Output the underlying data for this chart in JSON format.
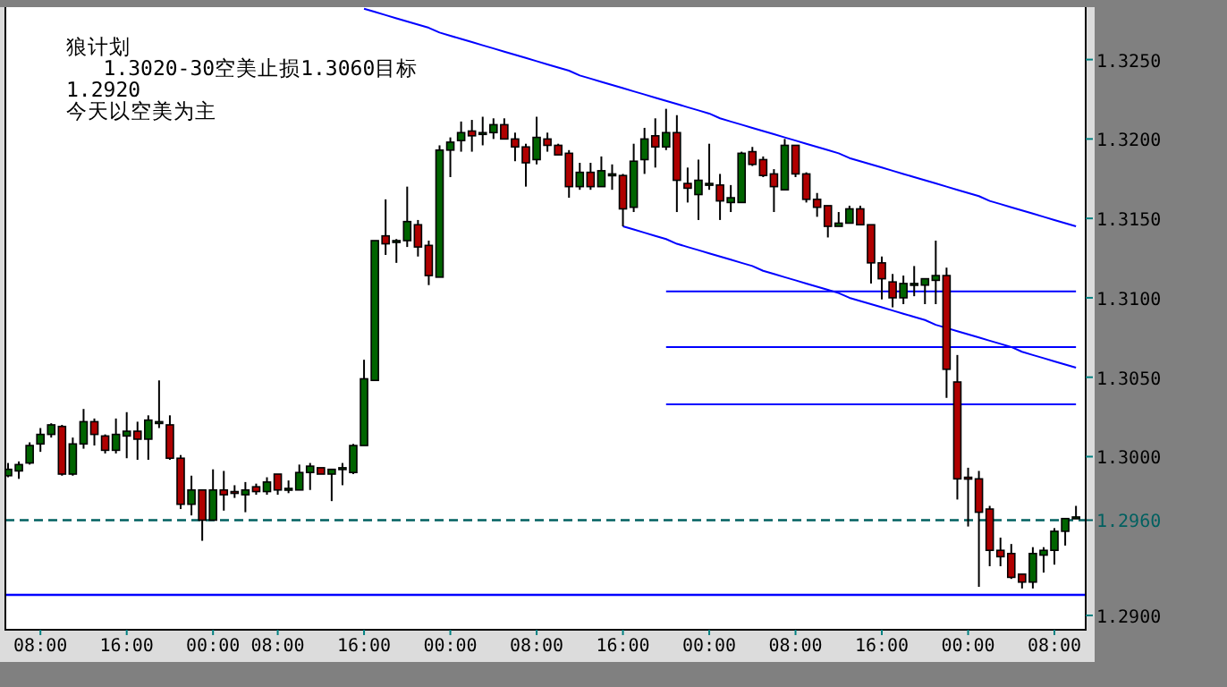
{
  "chart_data": {
    "type": "candlestick",
    "annotations": [
      "狼计划",
      "   1.3020-30空美止损1.3060目标",
      "1.2920",
      "今天以空美为主"
    ],
    "categories": [
      null,
      null,
      null,
      "08:00",
      null,
      null,
      null,
      null,
      null,
      null,
      null,
      "16:00",
      null,
      null,
      null,
      null,
      null,
      null,
      null,
      "00:00",
      null,
      null,
      null,
      null,
      null,
      "08:00",
      null,
      null,
      null,
      null,
      null,
      null,
      null,
      "16:00",
      null,
      null,
      null,
      null,
      null,
      null,
      null,
      "00:00",
      null,
      null,
      null,
      null,
      null,
      null,
      null,
      "08:00",
      null,
      null,
      null,
      null,
      null,
      null,
      null,
      "16:00",
      null,
      null,
      null,
      null,
      null,
      null,
      null,
      "00:00",
      null,
      null,
      null,
      null,
      null,
      null,
      null,
      "08:00",
      null,
      null,
      null,
      null,
      null,
      null,
      null,
      "16:00",
      null,
      null,
      null,
      null,
      null,
      null,
      null,
      "00:00",
      null,
      null,
      null,
      null,
      null,
      null,
      null,
      "08:00",
      null,
      null
    ],
    "ohlc": [
      [
        1.2988,
        1.2996,
        1.2987,
        1.2992
      ],
      [
        1.2991,
        1.2997,
        1.2986,
        1.2995
      ],
      [
        1.2996,
        1.3009,
        1.2995,
        1.3007
      ],
      [
        1.3008,
        1.3018,
        1.3003,
        1.3014
      ],
      [
        1.3014,
        1.3021,
        1.3012,
        1.302
      ],
      [
        1.3019,
        1.302,
        1.2988,
        1.2989
      ],
      [
        1.2989,
        1.3012,
        1.2988,
        1.3008
      ],
      [
        1.3008,
        1.303,
        1.3005,
        1.3022
      ],
      [
        1.3022,
        1.3024,
        1.3007,
        1.3014
      ],
      [
        1.3013,
        1.3014,
        1.3002,
        1.3004
      ],
      [
        1.3004,
        1.3024,
        1.3002,
        1.3014
      ],
      [
        1.3013,
        1.3028,
        1.2999,
        1.3016
      ],
      [
        1.3016,
        1.3022,
        1.2998,
        1.3011
      ],
      [
        1.3011,
        1.3026,
        1.2998,
        1.3023
      ],
      [
        1.3021,
        1.3048,
        1.3018,
        1.3022
      ],
      [
        1.302,
        1.3026,
        1.2998,
        1.2999
      ],
      [
        1.2999,
        1.3001,
        1.2967,
        1.297
      ],
      [
        1.297,
        1.2988,
        1.2963,
        1.2979
      ],
      [
        1.2979,
        1.2979,
        1.2947,
        1.296
      ],
      [
        1.296,
        1.2992,
        1.296,
        1.2979
      ],
      [
        1.2979,
        1.2991,
        1.2966,
        1.2976
      ],
      [
        1.2978,
        1.2982,
        1.2974,
        1.2977
      ],
      [
        1.2976,
        1.2984,
        1.2965,
        1.2979
      ],
      [
        1.2981,
        1.2983,
        1.2976,
        1.2978
      ],
      [
        1.2978,
        1.2987,
        1.2976,
        1.2984
      ],
      [
        1.2989,
        1.2989,
        1.2976,
        1.2979
      ],
      [
        1.2979,
        1.2985,
        1.2977,
        1.298
      ],
      [
        1.2979,
        1.2995,
        1.2979,
        1.299
      ],
      [
        1.299,
        1.2996,
        1.2979,
        1.2994
      ],
      [
        1.2993,
        1.2993,
        1.2989,
        1.2989
      ],
      [
        1.2989,
        1.2992,
        1.2972,
        1.2992
      ],
      [
        1.2992,
        1.2996,
        1.2982,
        1.2993
      ],
      [
        1.299,
        1.3008,
        1.2989,
        1.3007
      ],
      [
        1.3007,
        1.3061,
        1.3007,
        1.3049
      ],
      [
        1.3048,
        1.3136,
        1.3048,
        1.3136
      ],
      [
        1.3139,
        1.3162,
        1.3127,
        1.3134
      ],
      [
        1.3135,
        1.3137,
        1.3122,
        1.3136
      ],
      [
        1.3136,
        1.317,
        1.3132,
        1.3148
      ],
      [
        1.3146,
        1.3149,
        1.3126,
        1.3132
      ],
      [
        1.3133,
        1.3136,
        1.3108,
        1.3114
      ],
      [
        1.3113,
        1.3196,
        1.3113,
        1.3193
      ],
      [
        1.3193,
        1.3201,
        1.3176,
        1.3198
      ],
      [
        1.3199,
        1.3211,
        1.3192,
        1.3204
      ],
      [
        1.3205,
        1.3212,
        1.3192,
        1.3202
      ],
      [
        1.3203,
        1.3214,
        1.3196,
        1.3204
      ],
      [
        1.3204,
        1.3213,
        1.32,
        1.3209
      ],
      [
        1.3209,
        1.3213,
        1.32,
        1.32
      ],
      [
        1.32,
        1.3204,
        1.3186,
        1.3195
      ],
      [
        1.3195,
        1.3197,
        1.317,
        1.3185
      ],
      [
        1.3187,
        1.3214,
        1.3184,
        1.3201
      ],
      [
        1.32,
        1.3204,
        1.3192,
        1.3196
      ],
      [
        1.3196,
        1.3197,
        1.319,
        1.319
      ],
      [
        1.3191,
        1.3193,
        1.3163,
        1.317
      ],
      [
        1.317,
        1.3185,
        1.3168,
        1.3179
      ],
      [
        1.3179,
        1.3185,
        1.3168,
        1.317
      ],
      [
        1.317,
        1.3189,
        1.317,
        1.318
      ],
      [
        1.3177,
        1.3184,
        1.3168,
        1.3178
      ],
      [
        1.3177,
        1.3178,
        1.3145,
        1.3156
      ],
      [
        1.3157,
        1.3197,
        1.3154,
        1.3186
      ],
      [
        1.3187,
        1.3207,
        1.3178,
        1.32
      ],
      [
        1.3202,
        1.3213,
        1.3182,
        1.3195
      ],
      [
        1.3195,
        1.3219,
        1.3193,
        1.3204
      ],
      [
        1.3204,
        1.3215,
        1.3154,
        1.3174
      ],
      [
        1.3172,
        1.3182,
        1.316,
        1.3169
      ],
      [
        1.3165,
        1.3187,
        1.3149,
        1.3174
      ],
      [
        1.3171,
        1.3197,
        1.3168,
        1.3172
      ],
      [
        1.3171,
        1.3178,
        1.3149,
        1.3161
      ],
      [
        1.316,
        1.3171,
        1.3154,
        1.3163
      ],
      [
        1.316,
        1.3192,
        1.316,
        1.3191
      ],
      [
        1.3192,
        1.3195,
        1.3183,
        1.3184
      ],
      [
        1.3187,
        1.3189,
        1.3176,
        1.3177
      ],
      [
        1.3178,
        1.3181,
        1.3154,
        1.317
      ],
      [
        1.3168,
        1.32,
        1.3168,
        1.3196
      ],
      [
        1.3196,
        1.3196,
        1.3176,
        1.3178
      ],
      [
        1.3178,
        1.3179,
        1.316,
        1.3162
      ],
      [
        1.3162,
        1.3166,
        1.3151,
        1.3157
      ],
      [
        1.3158,
        1.3158,
        1.3138,
        1.3145
      ],
      [
        1.3145,
        1.3154,
        1.3145,
        1.3147
      ],
      [
        1.3147,
        1.3158,
        1.3147,
        1.3156
      ],
      [
        1.3156,
        1.3158,
        1.3146,
        1.3146
      ],
      [
        1.3146,
        1.3146,
        1.3109,
        1.3122
      ],
      [
        1.3122,
        1.3126,
        1.3099,
        1.3112
      ],
      [
        1.311,
        1.3115,
        1.3094,
        1.31
      ],
      [
        1.31,
        1.3114,
        1.3096,
        1.3109
      ],
      [
        1.3108,
        1.312,
        1.3101,
        1.3109
      ],
      [
        1.3108,
        1.3112,
        1.3096,
        1.3112
      ],
      [
        1.3111,
        1.3136,
        1.3096,
        1.3114
      ],
      [
        1.3114,
        1.3119,
        1.3037,
        1.3055
      ],
      [
        1.3047,
        1.3064,
        1.2973,
        1.2986
      ],
      [
        1.2987,
        1.2993,
        1.2956,
        1.2986
      ],
      [
        1.2986,
        1.2991,
        1.2918,
        1.2965
      ],
      [
        1.2967,
        1.2969,
        1.2931,
        1.2941
      ],
      [
        1.2941,
        1.2949,
        1.2931,
        1.2937
      ],
      [
        1.2939,
        1.2945,
        1.2923,
        1.2924
      ],
      [
        1.2926,
        1.2926,
        1.2917,
        1.2921
      ],
      [
        1.2921,
        1.2943,
        1.2917,
        1.2939
      ],
      [
        1.2938,
        1.2943,
        1.2927,
        1.2941
      ],
      [
        1.2941,
        1.2955,
        1.2932,
        1.2953
      ],
      [
        1.2953,
        1.2961,
        1.2944,
        1.2961
      ],
      [
        1.2961,
        1.2969,
        1.2961,
        1.2962
      ]
    ],
    "colors": [
      "#006400",
      "#006400",
      "#006400",
      "#006400",
      "#006400",
      "#b00000",
      "#006400",
      "#006400",
      "#b00000",
      "#b00000",
      "#006400",
      "#006400",
      "#b00000",
      "#006400",
      "#006400",
      "#b00000",
      "#b00000",
      "#006400",
      "#b00000",
      "#006400",
      "#b00000",
      "#b00000",
      "#006400",
      "#b00000",
      "#006400",
      "#b00000",
      "#006400",
      "#006400",
      "#006400",
      "#b00000",
      "#006400",
      "#006400",
      "#006400",
      "#006400",
      "#006400",
      "#b00000",
      "#006400",
      "#006400",
      "#b00000",
      "#b00000",
      "#006400",
      "#006400",
      "#006400",
      "#b00000",
      "#006400",
      "#006400",
      "#b00000",
      "#b00000",
      "#b00000",
      "#006400",
      "#b00000",
      "#b00000",
      "#b00000",
      "#006400",
      "#b00000",
      "#006400",
      "#006400",
      "#b00000",
      "#006400",
      "#006400",
      "#b00000",
      "#006400",
      "#b00000",
      "#b00000",
      "#006400",
      "#006400",
      "#b00000",
      "#006400",
      "#006400",
      "#b00000",
      "#b00000",
      "#b00000",
      "#006400",
      "#b00000",
      "#b00000",
      "#b00000",
      "#b00000",
      "#006400",
      "#006400",
      "#b00000",
      "#b00000",
      "#b00000",
      "#b00000",
      "#006400",
      "#006400",
      "#006400",
      "#006400",
      "#b00000",
      "#b00000",
      "#b00000",
      "#b00000",
      "#b00000",
      "#b00000",
      "#b00000",
      "#b00000",
      "#006400",
      "#006400",
      "#006400",
      "#006400",
      "#006400"
    ],
    "series": [
      {
        "type": "line",
        "color": "#0000ff",
        "values": [
          null,
          null,
          null,
          null,
          null,
          null,
          null,
          null,
          null,
          null,
          null,
          null,
          null,
          null,
          null,
          null,
          null,
          null,
          null,
          null,
          null,
          null,
          null,
          null,
          null,
          null,
          null,
          null,
          null,
          null,
          null,
          null,
          null,
          1.3282,
          1.328,
          1.3278,
          1.3276,
          1.3274,
          1.3272,
          1.327,
          1.3267,
          1.3265,
          1.3263,
          1.3261,
          1.3259,
          1.3257,
          1.3255,
          1.3253,
          1.3251,
          1.3249,
          1.3247,
          1.3245,
          1.3243,
          1.324,
          1.3238,
          1.3236,
          1.3234,
          1.3232,
          1.323,
          1.3228,
          1.3226,
          1.3224,
          1.3222,
          1.322,
          1.3218,
          1.3216,
          1.3213,
          1.3211,
          1.3209,
          1.3207,
          1.3205,
          1.3203,
          1.3201,
          1.3199,
          1.3197,
          1.3195,
          1.3193,
          1.3191,
          1.3188,
          1.3186,
          1.3184,
          1.3182,
          1.318,
          1.3178,
          1.3176,
          1.3174,
          1.3172,
          1.317,
          1.3168,
          1.3166,
          1.3164,
          1.3161,
          1.3159,
          1.3157,
          1.3155,
          1.3153,
          1.3151,
          1.3149,
          1.3147,
          1.3145
        ]
      },
      {
        "type": "line",
        "color": "#0000ff",
        "values": [
          null,
          null,
          null,
          null,
          null,
          null,
          null,
          null,
          null,
          null,
          null,
          null,
          null,
          null,
          null,
          null,
          null,
          null,
          null,
          null,
          null,
          null,
          null,
          null,
          null,
          null,
          null,
          null,
          null,
          null,
          null,
          null,
          null,
          null,
          null,
          null,
          null,
          null,
          null,
          null,
          null,
          null,
          null,
          null,
          null,
          null,
          null,
          null,
          null,
          null,
          null,
          null,
          null,
          null,
          null,
          null,
          null,
          1.3145,
          1.3143,
          1.3141,
          1.3139,
          1.3137,
          1.3134,
          1.3132,
          1.313,
          1.3128,
          1.3126,
          1.3124,
          1.3122,
          1.312,
          1.3117,
          1.3115,
          1.3113,
          1.3111,
          1.3109,
          1.3107,
          1.3105,
          1.3103,
          1.31,
          1.3098,
          1.3096,
          1.3094,
          1.3092,
          1.309,
          1.3088,
          1.3086,
          1.3083,
          1.3081,
          1.3079,
          1.3077,
          1.3075,
          1.3073,
          1.3071,
          1.3069,
          1.3066,
          1.3064,
          1.3062,
          1.306,
          1.3058,
          1.3056
        ]
      },
      {
        "type": "line",
        "color": "#0000ff",
        "values": [
          null,
          null,
          null,
          null,
          null,
          null,
          null,
          null,
          null,
          null,
          null,
          null,
          null,
          null,
          null,
          null,
          null,
          null,
          null,
          null,
          null,
          null,
          null,
          null,
          null,
          null,
          null,
          null,
          null,
          null,
          null,
          null,
          null,
          null,
          null,
          null,
          null,
          null,
          null,
          null,
          null,
          null,
          null,
          null,
          null,
          null,
          null,
          null,
          null,
          null,
          null,
          null,
          null,
          null,
          null,
          null,
          null,
          null,
          null,
          null,
          null,
          1.3104,
          1.3104,
          1.3104,
          1.3104,
          1.3104,
          1.3104,
          1.3104,
          1.3104,
          1.3104,
          1.3104,
          1.3104,
          1.3104,
          1.3104,
          1.3104,
          1.3104,
          1.3104,
          1.3104,
          1.3104,
          1.3104,
          1.3104,
          1.3104,
          1.3104,
          1.3104,
          1.3104,
          1.3104,
          1.3104,
          1.3104,
          1.3104,
          1.3104,
          1.3104,
          1.3104,
          1.3104,
          1.3104,
          1.3104,
          1.3104,
          1.3104,
          1.3104,
          1.3104,
          1.3104
        ]
      },
      {
        "type": "line",
        "color": "#0000ff",
        "values": [
          null,
          null,
          null,
          null,
          null,
          null,
          null,
          null,
          null,
          null,
          null,
          null,
          null,
          null,
          null,
          null,
          null,
          null,
          null,
          null,
          null,
          null,
          null,
          null,
          null,
          null,
          null,
          null,
          null,
          null,
          null,
          null,
          null,
          null,
          null,
          null,
          null,
          null,
          null,
          null,
          null,
          null,
          null,
          null,
          null,
          null,
          null,
          null,
          null,
          null,
          null,
          null,
          null,
          null,
          null,
          null,
          null,
          null,
          null,
          null,
          null,
          1.3069,
          1.3069,
          1.3069,
          1.3069,
          1.3069,
          1.3069,
          1.3069,
          1.3069,
          1.3069,
          1.3069,
          1.3069,
          1.3069,
          1.3069,
          1.3069,
          1.3069,
          1.3069,
          1.3069,
          1.3069,
          1.3069,
          1.3069,
          1.3069,
          1.3069,
          1.3069,
          1.3069,
          1.3069,
          1.3069,
          1.3069,
          1.3069,
          1.3069,
          1.3069,
          1.3069,
          1.3069,
          1.3069,
          1.3069,
          1.3069,
          1.3069,
          1.3069,
          1.3069,
          1.3069
        ]
      },
      {
        "type": "line",
        "color": "#0000ff",
        "values": [
          null,
          null,
          null,
          null,
          null,
          null,
          null,
          null,
          null,
          null,
          null,
          null,
          null,
          null,
          null,
          null,
          null,
          null,
          null,
          null,
          null,
          null,
          null,
          null,
          null,
          null,
          null,
          null,
          null,
          null,
          null,
          null,
          null,
          null,
          null,
          null,
          null,
          null,
          null,
          null,
          null,
          null,
          null,
          null,
          null,
          null,
          null,
          null,
          null,
          null,
          null,
          null,
          null,
          null,
          null,
          null,
          null,
          null,
          null,
          null,
          null,
          1.3033,
          1.3033,
          1.3033,
          1.3033,
          1.3033,
          1.3033,
          1.3033,
          1.3033,
          1.3033,
          1.3033,
          1.3033,
          1.3033,
          1.3033,
          1.3033,
          1.3033,
          1.3033,
          1.3033,
          1.3033,
          1.3033,
          1.3033,
          1.3033,
          1.3033,
          1.3033,
          1.3033,
          1.3033,
          1.3033,
          1.3033,
          1.3033,
          1.3033,
          1.3033,
          1.3033,
          1.3033,
          1.3033,
          1.3033,
          1.3033,
          1.3033,
          1.3033,
          1.3033,
          1.3033
        ]
      }
    ],
    "ref_lines": [
      {
        "axis": "y",
        "value": 1.296,
        "label": "1.2960",
        "color": "#006060",
        "line_style": "dashed"
      },
      {
        "axis": "y",
        "value": 1.2913,
        "color": "#0000ff",
        "line_style": "solid"
      }
    ],
    "ylim": [
      1.2891,
      1.3283
    ],
    "yticks": [
      {
        "value": 1.325,
        "label": "1.3250"
      },
      {
        "value": 1.32,
        "label": "1.3200"
      },
      {
        "value": 1.315,
        "label": "1.3150"
      },
      {
        "value": 1.31,
        "label": "1.3100"
      },
      {
        "value": 1.305,
        "label": "1.3050"
      },
      {
        "value": 1.3,
        "label": "1.3000"
      },
      {
        "value": 1.29,
        "label": "1.2900"
      }
    ]
  }
}
